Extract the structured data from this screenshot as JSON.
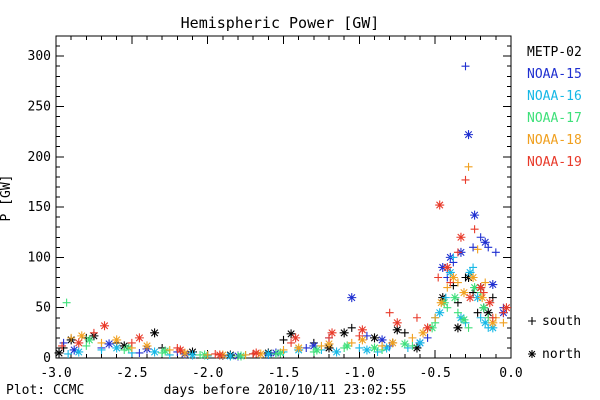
{
  "chart_data": {
    "type": "scatter",
    "title": "Hemispheric Power [GW]",
    "xlabel": "days before 2010/10/11 23:02:55",
    "ylabel": "P [GW]",
    "footer": "Plot: CCMC",
    "xlim": [
      -3.0,
      0.0
    ],
    "ylim": [
      0,
      320
    ],
    "xticks": [
      -3.0,
      -2.5,
      -2.0,
      -1.5,
      -1.0,
      -0.5,
      0.0
    ],
    "xtick_labels": [
      "-3.0",
      "-2.5",
      "-2.0",
      "-1.5",
      "-1.0",
      "-0.5",
      "0.0"
    ],
    "yticks": [
      0,
      50,
      100,
      150,
      200,
      250,
      300
    ],
    "ytick_labels": [
      "0",
      "50",
      "100",
      "150",
      "200",
      "250",
      "300"
    ],
    "legend_placement": "right",
    "marker_legend": [
      {
        "symbol": "+",
        "label": "south"
      },
      {
        "symbol": "*",
        "label": "north"
      }
    ],
    "series": [
      {
        "name": "METP-02",
        "color": "#000000",
        "south": [
          [
            -2.95,
            10
          ],
          [
            -2.8,
            20
          ],
          [
            -2.6,
            15
          ],
          [
            -2.3,
            10
          ],
          [
            -2.0,
            3
          ],
          [
            -1.7,
            4
          ],
          [
            -1.5,
            18
          ],
          [
            -1.3,
            15
          ],
          [
            -1.05,
            30
          ],
          [
            -0.78,
            15
          ],
          [
            -0.7,
            25
          ],
          [
            -0.38,
            72
          ],
          [
            -0.35,
            55
          ],
          [
            -0.3,
            80
          ],
          [
            -0.25,
            65
          ],
          [
            -0.22,
            45
          ],
          [
            -0.18,
            50
          ],
          [
            -0.12,
            60
          ]
        ],
        "north": [
          [
            -2.98,
            5
          ],
          [
            -2.9,
            18
          ],
          [
            -2.75,
            22
          ],
          [
            -2.55,
            12
          ],
          [
            -2.35,
            25
          ],
          [
            -2.1,
            6
          ],
          [
            -1.85,
            3
          ],
          [
            -1.6,
            5
          ],
          [
            -1.45,
            24
          ],
          [
            -1.2,
            10
          ],
          [
            -1.1,
            25
          ],
          [
            -0.9,
            20
          ],
          [
            -0.75,
            28
          ],
          [
            -0.62,
            10
          ],
          [
            -0.45,
            60
          ],
          [
            -0.35,
            30
          ],
          [
            -0.28,
            80
          ],
          [
            -0.2,
            70
          ],
          [
            -0.15,
            45
          ]
        ]
      },
      {
        "name": "NOAA-15",
        "color": "#1f2fd0",
        "south": [
          [
            -2.95,
            15
          ],
          [
            -2.7,
            10
          ],
          [
            -2.45,
            5
          ],
          [
            -2.2,
            6
          ],
          [
            -1.9,
            2
          ],
          [
            -1.6,
            3
          ],
          [
            -1.35,
            10
          ],
          [
            -1.2,
            20
          ],
          [
            -0.95,
            22
          ],
          [
            -0.8,
            12
          ],
          [
            -0.55,
            20
          ],
          [
            -0.42,
            80
          ],
          [
            -0.38,
            95
          ],
          [
            -0.3,
            290
          ],
          [
            -0.25,
            110
          ],
          [
            -0.2,
            120
          ],
          [
            -0.15,
            110
          ],
          [
            -0.1,
            105
          ],
          [
            -0.05,
            50
          ]
        ],
        "north": [
          [
            -2.88,
            8
          ],
          [
            -2.65,
            14
          ],
          [
            -2.4,
            9
          ],
          [
            -2.15,
            4
          ],
          [
            -1.8,
            2
          ],
          [
            -1.55,
            5
          ],
          [
            -1.3,
            12
          ],
          [
            -1.05,
            60
          ],
          [
            -0.85,
            18
          ],
          [
            -0.6,
            15
          ],
          [
            -0.45,
            90
          ],
          [
            -0.4,
            100
          ],
          [
            -0.33,
            105
          ],
          [
            -0.28,
            222
          ],
          [
            -0.24,
            142
          ],
          [
            -0.17,
            115
          ],
          [
            -0.12,
            73
          ],
          [
            -0.05,
            45
          ]
        ]
      },
      {
        "name": "NOAA-16",
        "color": "#16b8e6",
        "south": [
          [
            -2.92,
            4
          ],
          [
            -2.7,
            8
          ],
          [
            -2.5,
            5
          ],
          [
            -2.25,
            3
          ],
          [
            -2.0,
            2
          ],
          [
            -1.75,
            3
          ],
          [
            -1.5,
            6
          ],
          [
            -1.25,
            8
          ],
          [
            -1.0,
            10
          ],
          [
            -0.88,
            6
          ],
          [
            -0.68,
            10
          ],
          [
            -0.5,
            40
          ],
          [
            -0.43,
            60
          ],
          [
            -0.38,
            100
          ],
          [
            -0.3,
            35
          ],
          [
            -0.25,
            90
          ],
          [
            -0.2,
            40
          ],
          [
            -0.15,
            30
          ]
        ],
        "north": [
          [
            -2.85,
            6
          ],
          [
            -2.6,
            10
          ],
          [
            -2.35,
            6
          ],
          [
            -2.1,
            3
          ],
          [
            -1.85,
            2
          ],
          [
            -1.6,
            4
          ],
          [
            -1.4,
            8
          ],
          [
            -1.15,
            6
          ],
          [
            -0.95,
            8
          ],
          [
            -0.82,
            10
          ],
          [
            -0.6,
            15
          ],
          [
            -0.47,
            45
          ],
          [
            -0.4,
            85
          ],
          [
            -0.33,
            40
          ],
          [
            -0.27,
            85
          ],
          [
            -0.22,
            60
          ],
          [
            -0.17,
            35
          ],
          [
            -0.12,
            30
          ]
        ]
      },
      {
        "name": "NOAA-17",
        "color": "#3ee07a",
        "south": [
          [
            -2.93,
            55
          ],
          [
            -2.8,
            12
          ],
          [
            -2.55,
            8
          ],
          [
            -2.3,
            5
          ],
          [
            -2.05,
            3
          ],
          [
            -1.8,
            2
          ],
          [
            -1.55,
            4
          ],
          [
            -1.3,
            6
          ],
          [
            -1.1,
            10
          ],
          [
            -0.85,
            8
          ],
          [
            -0.65,
            12
          ],
          [
            -0.5,
            35
          ],
          [
            -0.42,
            50
          ],
          [
            -0.35,
            45
          ],
          [
            -0.28,
            30
          ],
          [
            -0.2,
            65
          ],
          [
            -0.15,
            40
          ]
        ],
        "north": [
          [
            -2.78,
            18
          ],
          [
            -2.52,
            10
          ],
          [
            -2.28,
            7
          ],
          [
            -2.02,
            3
          ],
          [
            -1.78,
            2
          ],
          [
            -1.52,
            5
          ],
          [
            -1.28,
            8
          ],
          [
            -1.08,
            12
          ],
          [
            -0.9,
            10
          ],
          [
            -0.7,
            14
          ],
          [
            -0.52,
            30
          ],
          [
            -0.44,
            55
          ],
          [
            -0.37,
            60
          ],
          [
            -0.31,
            38
          ],
          [
            -0.24,
            70
          ],
          [
            -0.18,
            50
          ]
        ]
      },
      {
        "name": "NOAA-18",
        "color": "#f0a020",
        "south": [
          [
            -2.9,
            20
          ],
          [
            -2.7,
            15
          ],
          [
            -2.5,
            10
          ],
          [
            -2.25,
            8
          ],
          [
            -2.0,
            3
          ],
          [
            -1.75,
            3
          ],
          [
            -1.5,
            8
          ],
          [
            -1.25,
            12
          ],
          [
            -1.05,
            15
          ],
          [
            -0.85,
            12
          ],
          [
            -0.65,
            20
          ],
          [
            -0.5,
            40
          ],
          [
            -0.42,
            70
          ],
          [
            -0.35,
            75
          ],
          [
            -0.28,
            190
          ],
          [
            -0.22,
            108
          ],
          [
            -0.17,
            75
          ],
          [
            -0.1,
            40
          ],
          [
            -0.05,
            35
          ]
        ],
        "north": [
          [
            -2.83,
            22
          ],
          [
            -2.6,
            18
          ],
          [
            -2.4,
            12
          ],
          [
            -2.15,
            5
          ],
          [
            -1.9,
            3
          ],
          [
            -1.65,
            4
          ],
          [
            -1.4,
            10
          ],
          [
            -1.2,
            14
          ],
          [
            -0.98,
            18
          ],
          [
            -0.78,
            15
          ],
          [
            -0.58,
            25
          ],
          [
            -0.46,
            55
          ],
          [
            -0.38,
            80
          ],
          [
            -0.31,
            65
          ],
          [
            -0.25,
            80
          ],
          [
            -0.19,
            60
          ],
          [
            -0.12,
            35
          ]
        ]
      },
      {
        "name": "NOAA-19",
        "color": "#e83a2a",
        "south": [
          [
            -2.96,
            12
          ],
          [
            -2.75,
            25
          ],
          [
            -2.5,
            15
          ],
          [
            -2.2,
            10
          ],
          [
            -1.95,
            4
          ],
          [
            -1.7,
            4
          ],
          [
            -1.45,
            15
          ],
          [
            -1.2,
            20
          ],
          [
            -1.0,
            22
          ],
          [
            -0.8,
            45
          ],
          [
            -0.62,
            40
          ],
          [
            -0.48,
            80
          ],
          [
            -0.4,
            75
          ],
          [
            -0.35,
            105
          ],
          [
            -0.3,
            177
          ],
          [
            -0.24,
            128
          ],
          [
            -0.18,
            65
          ],
          [
            -0.12,
            40
          ],
          [
            -0.05,
            45
          ]
        ],
        "north": [
          [
            -2.85,
            15
          ],
          [
            -2.68,
            32
          ],
          [
            -2.45,
            20
          ],
          [
            -2.18,
            8
          ],
          [
            -1.92,
            3
          ],
          [
            -1.68,
            5
          ],
          [
            -1.42,
            20
          ],
          [
            -1.18,
            25
          ],
          [
            -0.98,
            28
          ],
          [
            -0.75,
            35
          ],
          [
            -0.55,
            30
          ],
          [
            -0.47,
            152
          ],
          [
            -0.42,
            90
          ],
          [
            -0.33,
            120
          ],
          [
            -0.27,
            60
          ],
          [
            -0.2,
            70
          ],
          [
            -0.14,
            55
          ],
          [
            -0.03,
            50
          ]
        ]
      }
    ]
  }
}
